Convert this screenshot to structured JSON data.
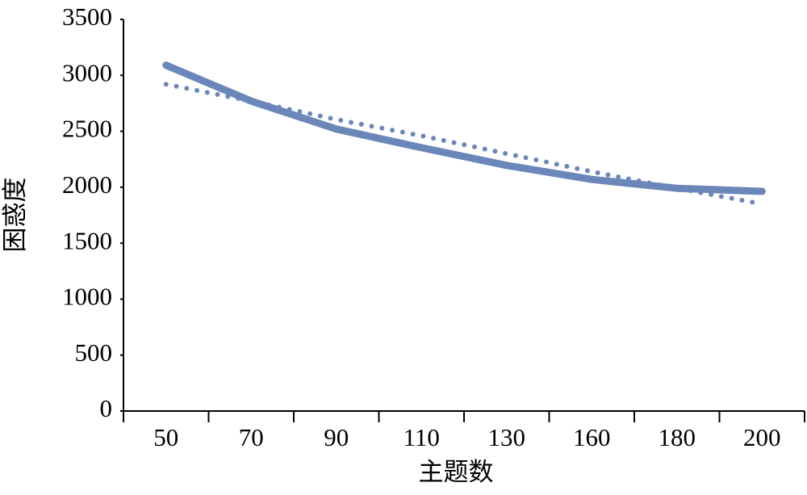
{
  "chart_data": {
    "type": "line",
    "x_label": "主题数",
    "y_label": "困惑度",
    "categories": [
      "50",
      "70",
      "90",
      "110",
      "130",
      "160",
      "180",
      "200"
    ],
    "series": [
      {
        "color": "#6b87b9",
        "style": "solid",
        "values": [
          3090,
          2770,
          2520,
          2353,
          2195,
          2070,
          1990,
          1963
        ]
      },
      {
        "color": "#6b87b9",
        "style": "dotted",
        "values": [
          2920,
          2770,
          2605,
          2460,
          2300,
          2140,
          1990,
          1850
        ]
      }
    ],
    "ylim": [
      0,
      3500
    ],
    "yticks": [
      0,
      500,
      1000,
      1500,
      2000,
      2500,
      3000,
      3500
    ]
  }
}
